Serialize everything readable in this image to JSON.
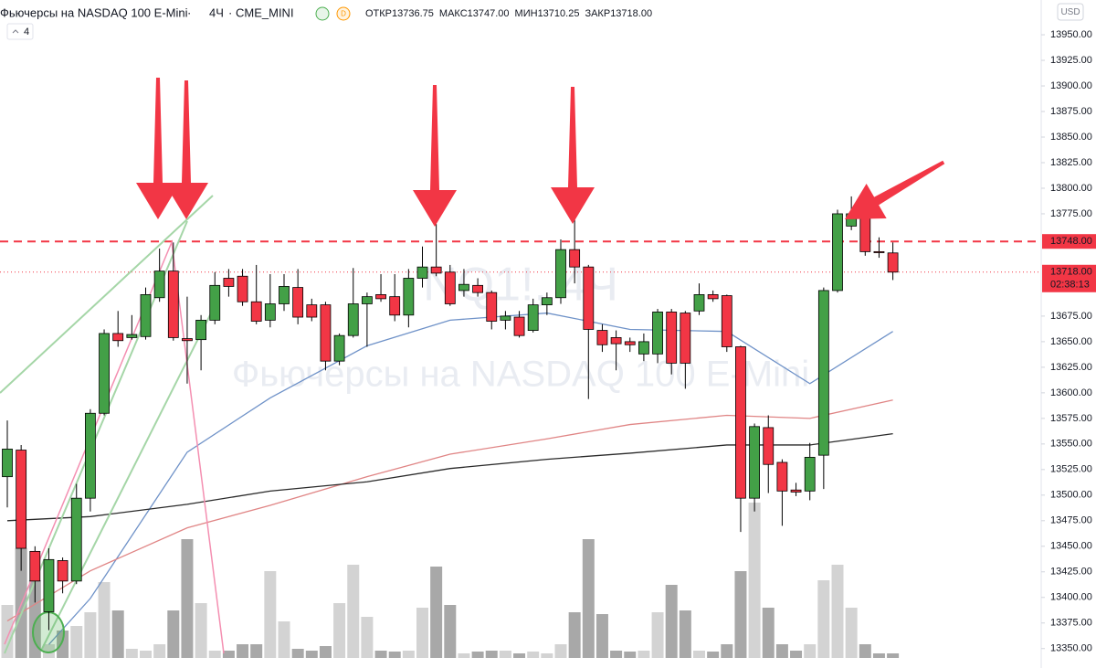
{
  "chart_data": {
    "type": "candlestick",
    "title": "Фьючерсы на NASDAQ 100 E-Mini",
    "interval": "4Ч",
    "exchange": "CME_MINI",
    "watermark": "NQ1!, 4Ч",
    "indicators_count": "4",
    "currency": "USD",
    "ohlc_legend": [
      {
        "name": "ОТКР",
        "label": "13736.75"
      },
      {
        "name": "МАКС",
        "label": "13747.00"
      },
      {
        "name": "МИН",
        "label": "13710.25"
      },
      {
        "name": "ЗАКР",
        "label": "13718.00"
      }
    ],
    "up_color": "#43a047",
    "down_color": "#f23645",
    "volume_up_color": "#d3d3d3",
    "volume_down_color": "#a8a8a8",
    "open": [
      13518,
      13544,
      13445,
      13386,
      13436,
      13416,
      13497,
      13580,
      13658,
      13654,
      13655,
      13693,
      13719,
      13653,
      13652,
      13671,
      13712,
      13714,
      13689,
      13671,
      13687,
      13703,
      13686,
      13686,
      13631,
      13656,
      13687,
      13696,
      13694,
      13676,
      13712,
      13723,
      13718,
      13700,
      13705,
      13698,
      13671,
      13674,
      13661,
      13686,
      13693,
      13740,
      13723,
      13661,
      13654,
      13650,
      13638,
      13638,
      13679,
      13678,
      13680,
      13696,
      13695,
      13645,
      13497,
      13566,
      13532,
      13505,
      13504,
      13539,
      13700,
      13763,
      13774,
      13738,
      13736.75
    ],
    "high": [
      13573,
      13549,
      13450,
      13448,
      13439,
      13511,
      13584,
      13662,
      13680,
      13676,
      13703,
      13741,
      13747,
      13694,
      13676,
      13718,
      13721,
      13721,
      13725,
      13716,
      13716,
      13721,
      13692,
      13689,
      13658,
      13722,
      13698,
      13716,
      13716,
      13721,
      13743,
      13765,
      13725,
      13721,
      13712,
      13700,
      13680,
      13680,
      13692,
      13698,
      13750,
      13776,
      13725,
      13667,
      13661,
      13654,
      13658,
      13682,
      13682,
      13680,
      13707,
      13700,
      13696,
      13646,
      13570,
      13578,
      13535,
      13512,
      13551,
      13703,
      13779,
      13792,
      13779,
      13752,
      13747
    ],
    "low": [
      13488,
      13426,
      13395,
      13368,
      13404,
      13413,
      13484,
      13578,
      13645,
      13652,
      13652,
      13689,
      13651,
      13609,
      13622,
      13667,
      13694,
      13685,
      13667,
      13664,
      13680,
      13667,
      13670,
      13622,
      13627,
      13654,
      13645,
      13689,
      13670,
      13664,
      13703,
      13714,
      13685,
      13694,
      13694,
      13662,
      13662,
      13654,
      13659,
      13676,
      13687,
      13707,
      13594,
      13640,
      13622,
      13640,
      13631,
      13629,
      13618,
      13604,
      13676,
      13689,
      13640,
      13464,
      13484,
      13502,
      13470,
      13499,
      13495,
      13506,
      13698,
      13759,
      13734,
      13732,
      13710.25
    ],
    "close": [
      13545,
      13448,
      13416,
      13437,
      13416,
      13497,
      13580,
      13658,
      13651,
      13657,
      13696,
      13719,
      13654,
      13651,
      13671,
      13705,
      13704,
      13689,
      13670,
      13687,
      13704,
      13674,
      13674,
      13631,
      13656,
      13687,
      13694,
      13692,
      13676,
      13712,
      13723,
      13717,
      13687,
      13706,
      13698,
      13670,
      13675,
      13656,
      13686,
      13693,
      13740,
      13723,
      13662,
      13647,
      13648,
      13647,
      13650,
      13679,
      13629,
      13629,
      13696,
      13692,
      13645,
      13497,
      13567,
      13530,
      13504,
      13503,
      13537,
      13700,
      13775,
      13775,
      13738,
      13737,
      13718
    ],
    "volume": [
      58,
      120,
      85,
      15,
      30,
      35,
      50,
      83,
      52,
      10,
      8,
      15,
      52,
      130,
      60,
      8,
      8,
      15,
      15,
      95,
      40,
      10,
      8,
      13,
      60,
      102,
      45,
      8,
      7,
      8,
      55,
      100,
      58,
      5,
      7,
      8,
      8,
      5,
      7,
      5,
      15,
      50,
      130,
      48,
      8,
      7,
      8,
      50,
      80,
      52,
      8,
      7,
      15,
      95,
      170,
      55,
      15,
      8,
      15,
      85,
      102,
      55,
      15,
      5,
      5
    ],
    "lines": [
      {
        "color": "#6f92c8",
        "x": [
          3,
          6,
          13,
          19,
          26,
          32,
          39,
          45,
          52,
          58,
          64
        ],
        "values": [
          13354,
          13399,
          13542,
          13595,
          13646,
          13671,
          13678,
          13662,
          13660,
          13609,
          13660
        ]
      },
      {
        "color": "#e08585",
        "x": [
          0,
          6,
          13,
          19,
          26,
          32,
          39,
          45,
          52,
          58,
          64
        ],
        "values": [
          13377,
          13426,
          13468,
          13490,
          13518,
          13540,
          13555,
          13569,
          13578,
          13575,
          13593
        ]
      },
      {
        "color": "#2a2a2a",
        "x": [
          0,
          6,
          13,
          19,
          26,
          32,
          39,
          45,
          52,
          58,
          64
        ],
        "values": [
          13475,
          13479,
          13491,
          13504,
          13513,
          13526,
          13535,
          13541,
          13549,
          13549,
          13560
        ]
      }
    ],
    "hline": {
      "value": 13748,
      "label": "13748.00",
      "color": "#f23645"
    },
    "last_price": {
      "value": 13718,
      "label": "13718.00",
      "countdown": "02:38:13",
      "color": "#f23645"
    },
    "ylim": [
      13331,
      13984
    ],
    "yticks": [
      {
        "value": 13350,
        "label": "13350.00"
      },
      {
        "value": 13375,
        "label": "13375.00"
      },
      {
        "value": 13400,
        "label": "13400.00"
      },
      {
        "value": 13425,
        "label": "13425.00"
      },
      {
        "value": 13450,
        "label": "13450.00"
      },
      {
        "value": 13475,
        "label": "13475.00"
      },
      {
        "value": 13500,
        "label": "13500.00"
      },
      {
        "value": 13525,
        "label": "13525.00"
      },
      {
        "value": 13550,
        "label": "13550.00"
      },
      {
        "value": 13575,
        "label": "13575.00"
      },
      {
        "value": 13600,
        "label": "13600.00"
      },
      {
        "value": 13625,
        "label": "13625.00"
      },
      {
        "value": 13650,
        "label": "13650.00"
      },
      {
        "value": 13675,
        "label": "13675.00"
      },
      {
        "value": 13775,
        "label": "13775.00"
      },
      {
        "value": 13800,
        "label": "13800.00"
      },
      {
        "value": 13825,
        "label": "13825.00"
      },
      {
        "value": 13850,
        "label": "13850.00"
      },
      {
        "value": 13875,
        "label": "13875.00"
      },
      {
        "value": 13900,
        "label": "13900.00"
      },
      {
        "value": 13925,
        "label": "13925.00"
      },
      {
        "value": 13950,
        "label": "13950.00"
      }
    ],
    "grid": false
  }
}
